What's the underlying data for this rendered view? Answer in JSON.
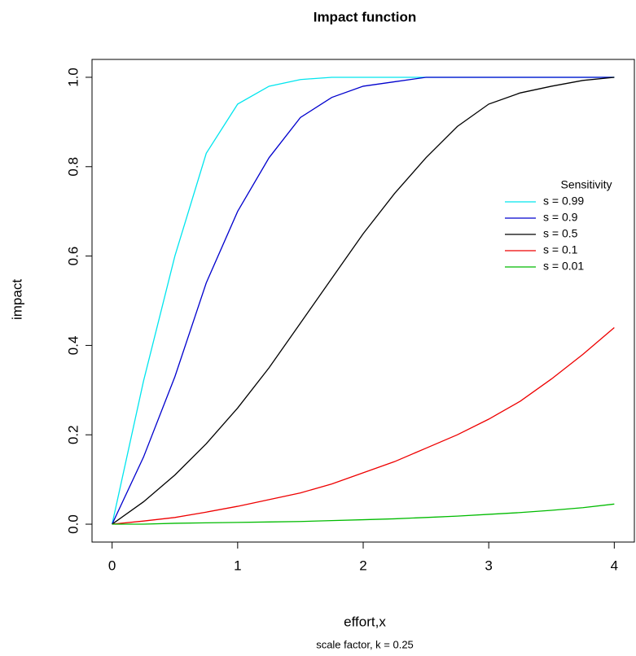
{
  "chart_data": {
    "type": "line",
    "title": "Impact function",
    "x_label": "effort,x",
    "y_label": "impact",
    "subtitle": "scale factor, k = 0.25",
    "legend_title": "Sensitivity",
    "legend_position": "right",
    "x": [
      0,
      0.25,
      0.5,
      0.75,
      1,
      1.25,
      1.5,
      1.75,
      2,
      2.25,
      2.5,
      2.75,
      3,
      3.25,
      3.5,
      3.75,
      4
    ],
    "series": [
      {
        "name": "s = 0.99",
        "color": "#00e5ee",
        "values": [
          0,
          0.32,
          0.6,
          0.83,
          0.94,
          0.98,
          0.995,
          1,
          1,
          1,
          1,
          1,
          1,
          1,
          1,
          1,
          1
        ]
      },
      {
        "name": "s = 0.9",
        "color": "#0000cd",
        "values": [
          0,
          0.15,
          0.33,
          0.54,
          0.7,
          0.82,
          0.91,
          0.955,
          0.98,
          0.99,
          1,
          1,
          1,
          1,
          1,
          1,
          1
        ]
      },
      {
        "name": "s = 0.5",
        "color": "#000000",
        "values": [
          0,
          0.05,
          0.11,
          0.18,
          0.26,
          0.35,
          0.45,
          0.55,
          0.65,
          0.74,
          0.82,
          0.89,
          0.94,
          0.965,
          0.98,
          0.993,
          1
        ]
      },
      {
        "name": "s = 0.1",
        "color": "#ee0000",
        "values": [
          0,
          0.007,
          0.015,
          0.027,
          0.04,
          0.055,
          0.07,
          0.09,
          0.115,
          0.14,
          0.17,
          0.2,
          0.235,
          0.275,
          0.325,
          0.38,
          0.44
        ]
      },
      {
        "name": "s = 0.01",
        "color": "#00bb00",
        "values": [
          0,
          0,
          0.002,
          0.003,
          0.004,
          0.005,
          0.006,
          0.008,
          0.01,
          0.012,
          0.015,
          0.018,
          0.022,
          0.026,
          0.031,
          0.037,
          0.045
        ]
      }
    ],
    "xlim": [
      -0.16,
      4.16
    ],
    "ylim": [
      -0.04,
      1.04
    ],
    "xticks": [
      0,
      1,
      2,
      3,
      4
    ],
    "yticks": [
      {
        "value": 0,
        "label": "0.0"
      },
      0.2,
      0.4,
      0.6,
      0.8,
      {
        "value": 1,
        "label": "1.0"
      }
    ]
  }
}
